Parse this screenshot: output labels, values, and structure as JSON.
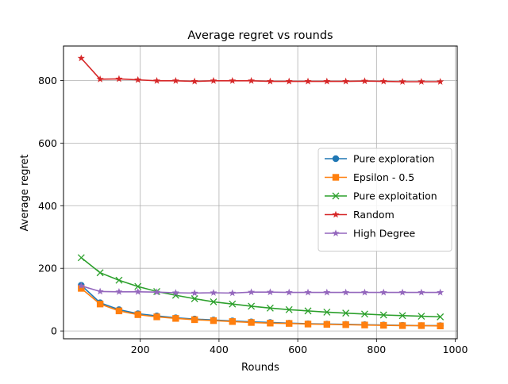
{
  "chart_data": {
    "type": "line",
    "title": "Average regret vs rounds",
    "xlabel": "Rounds",
    "ylabel": "Average regret",
    "xlim": [
      5,
      1005
    ],
    "ylim": [
      -25,
      910
    ],
    "xticks": [
      200,
      400,
      600,
      800,
      1000
    ],
    "yticks": [
      0,
      200,
      400,
      600,
      800
    ],
    "grid": true,
    "legend_position": "center-right",
    "x": [
      50,
      98,
      146,
      194,
      242,
      290,
      338,
      386,
      434,
      482,
      530,
      578,
      626,
      674,
      722,
      770,
      818,
      866,
      914,
      962
    ],
    "series": [
      {
        "name": "Pure exploration",
        "color": "#1f77b4",
        "marker": "circle",
        "values": [
          146,
          90,
          68,
          55,
          48,
          42,
          38,
          35,
          32,
          29,
          27,
          25,
          23,
          22,
          21,
          20,
          19,
          18,
          17,
          17
        ]
      },
      {
        "name": "Epsilon - 0.5",
        "color": "#ff7f0e",
        "marker": "square",
        "values": [
          136,
          86,
          64,
          52,
          45,
          40,
          36,
          33,
          30,
          27,
          25,
          24,
          22,
          21,
          20,
          19,
          18,
          17,
          17,
          16
        ]
      },
      {
        "name": "Pure exploitation",
        "color": "#2ca02c",
        "marker": "x",
        "values": [
          234,
          186,
          162,
          142,
          126,
          114,
          103,
          93,
          86,
          79,
          73,
          68,
          64,
          60,
          57,
          54,
          51,
          49,
          47,
          45
        ]
      },
      {
        "name": "Random",
        "color": "#d62728",
        "marker": "star",
        "values": [
          871,
          804,
          805,
          802,
          799,
          799,
          797,
          799,
          799,
          799,
          797,
          797,
          797,
          797,
          797,
          798,
          797,
          796,
          796,
          796
        ]
      },
      {
        "name": "High Degree",
        "color": "#9467bd",
        "marker": "star",
        "values": [
          144,
          126,
          125,
          125,
          124,
          122,
          121,
          122,
          121,
          124,
          124,
          123,
          123,
          123,
          123,
          123,
          123,
          123,
          123,
          123
        ]
      }
    ]
  }
}
